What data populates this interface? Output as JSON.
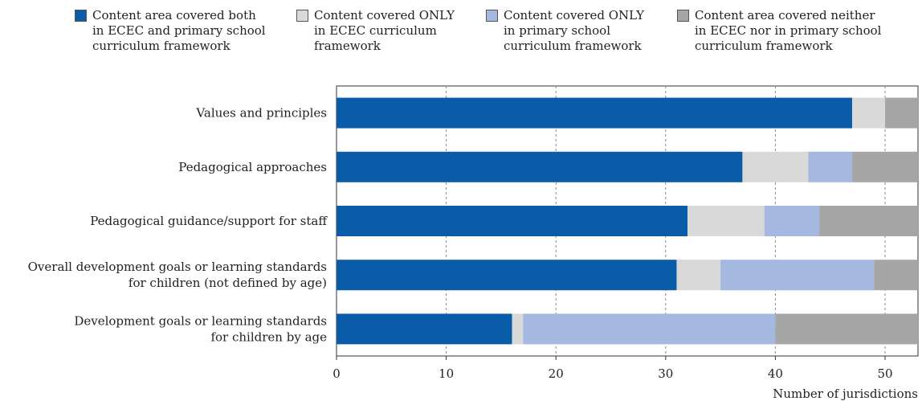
{
  "chart_data": {
    "type": "bar",
    "orientation": "horizontal",
    "stacked": true,
    "title": "",
    "xlabel": "Number of jurisdictions",
    "ylabel": "",
    "xlim": [
      0,
      53
    ],
    "xticks": [
      0,
      10,
      20,
      30,
      40,
      50
    ],
    "grid": "vertical dashed at x ticks",
    "legend_position": "top",
    "categories": [
      [
        "Values and principles"
      ],
      [
        "Pedagogical approaches"
      ],
      [
        "Pedagogical guidance/support for staff"
      ],
      [
        "Overall development goals or learning standards",
        "for children (not defined by age)"
      ],
      [
        "Development goals or learning standards",
        "for children by age"
      ]
    ],
    "series": [
      {
        "name": "Content area covered both\nin ECEC and primary school\ncurriculum framework",
        "color": "#0a5ca8",
        "values": [
          47,
          37,
          32,
          31,
          16
        ]
      },
      {
        "name": "Content covered ONLY\nin ECEC curriculum\nframework",
        "color": "#d9d9d9",
        "values": [
          3,
          6,
          7,
          4,
          1
        ]
      },
      {
        "name": "Content covered ONLY\nin primary school\ncurriculum framework",
        "color": "#a4b8e0",
        "values": [
          0,
          4,
          5,
          14,
          23
        ]
      },
      {
        "name": "Content area covered neither\nin ECEC nor in primary school\ncurriculum framework",
        "color": "#a6a6a6",
        "values": [
          3,
          6,
          9,
          4,
          13
        ]
      }
    ]
  }
}
